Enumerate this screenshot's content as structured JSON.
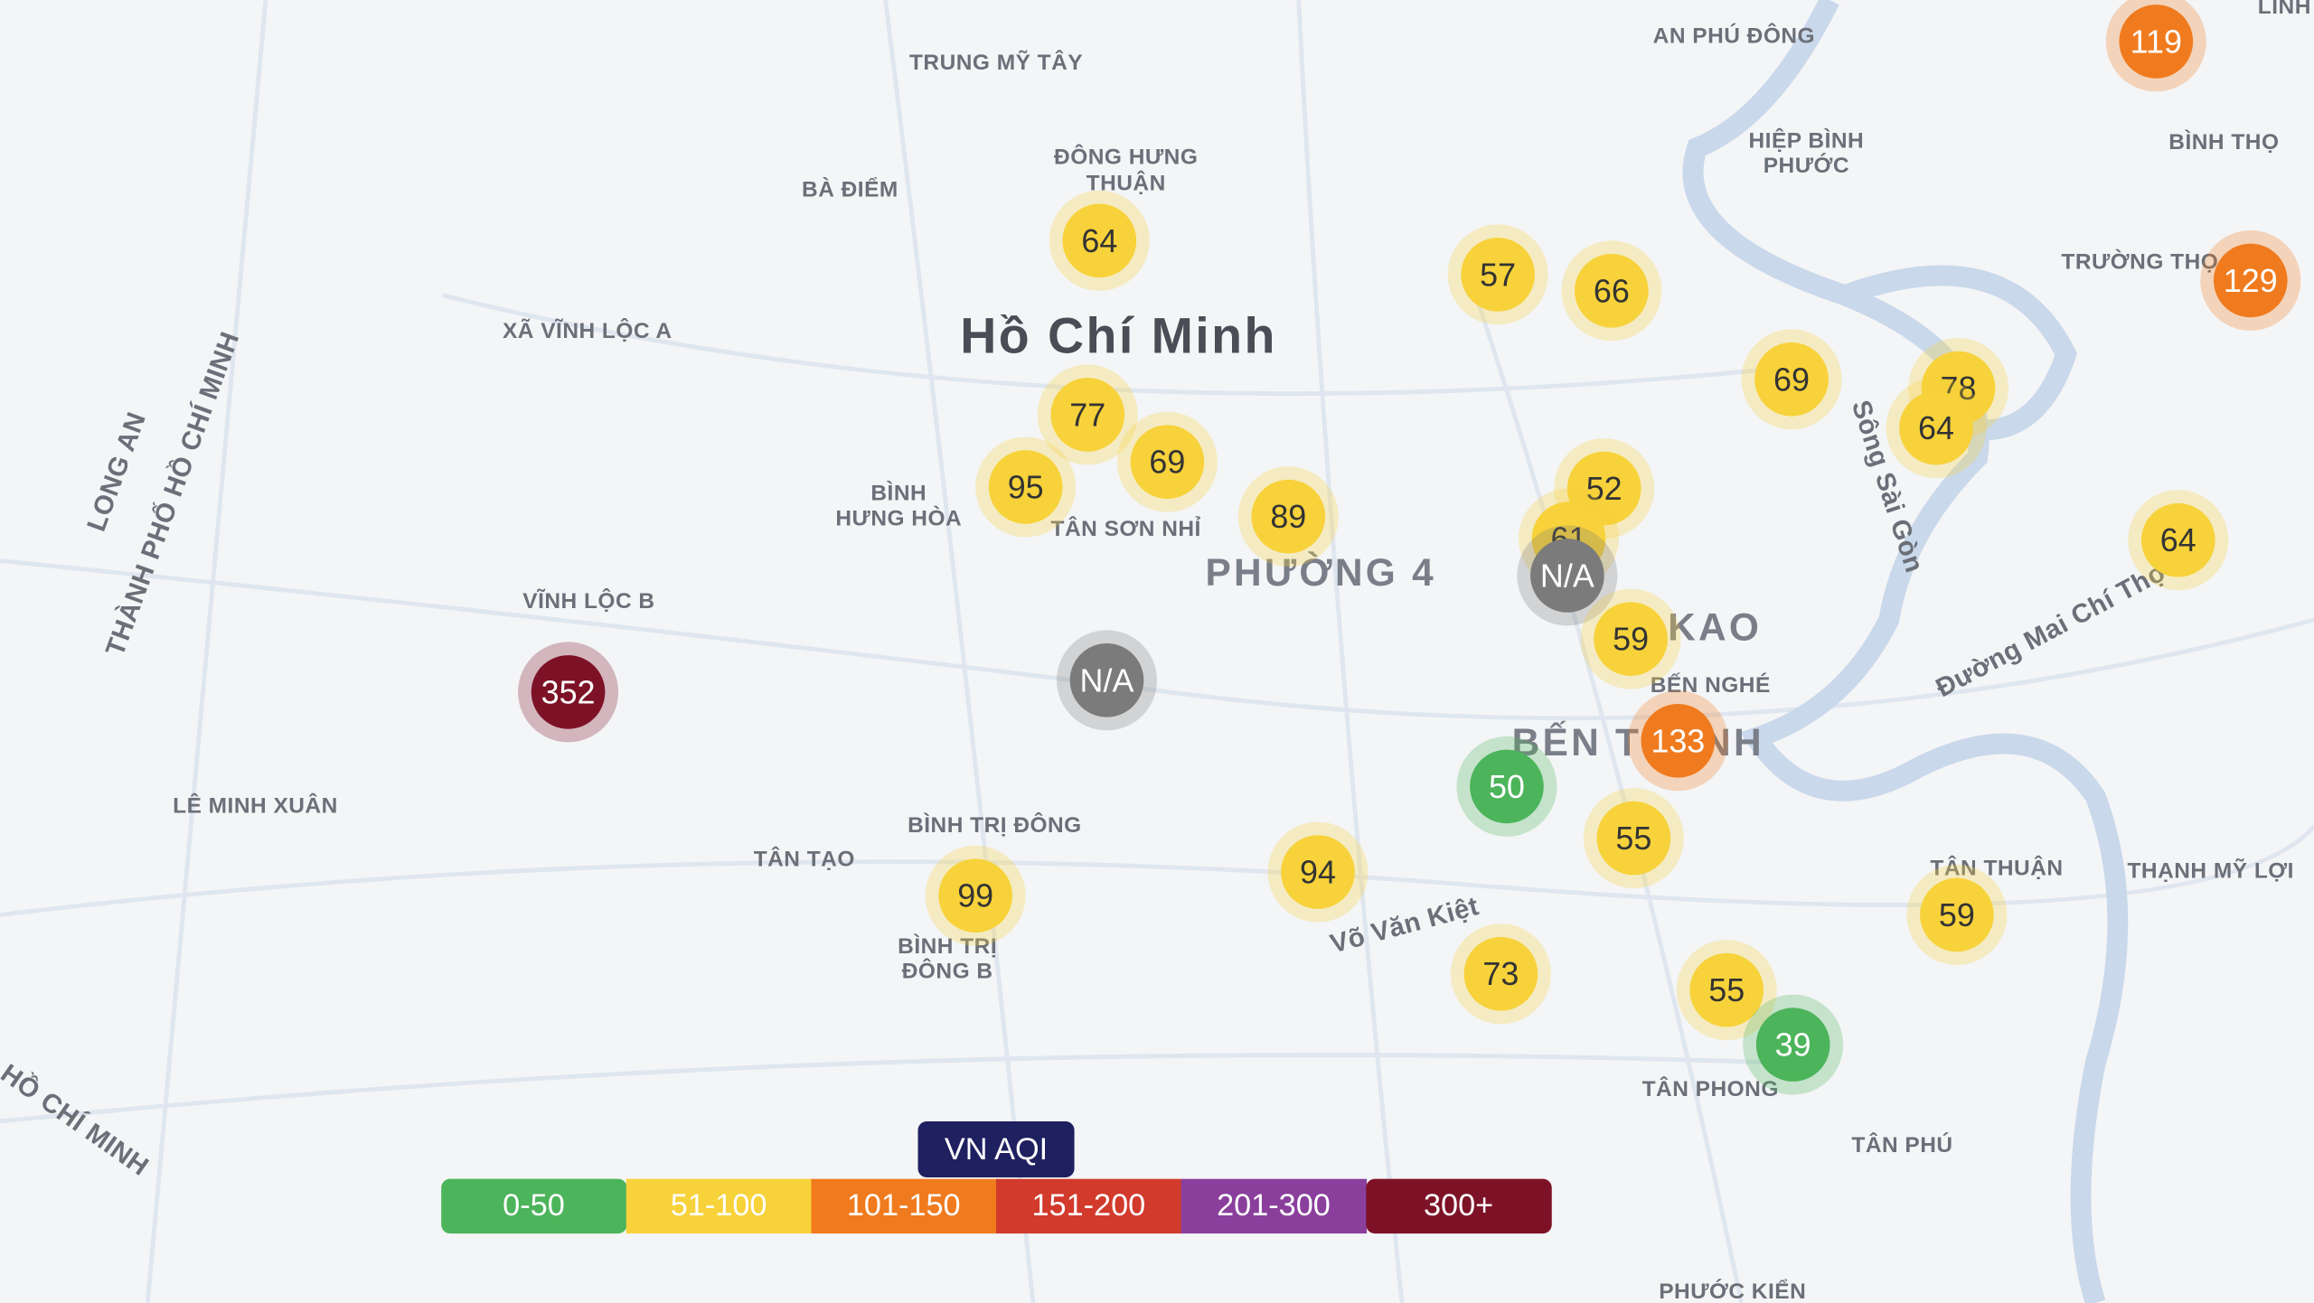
{
  "map": {
    "places": [
      "AN PHÚ ĐÔNG",
      "TRUNG MỸ TÂY",
      "BÀ ĐIỂM",
      "ĐÔNG HƯNG",
      "THUẬN",
      "HIỆP BÌNH",
      "PHƯỚC",
      "BÌNH THỌ",
      "XÃ VĨNH LỘC A",
      "Hồ Chí Minh",
      "TRƯỜNG THỌ",
      "BÌNH",
      "HƯNG HÒA",
      "TÂN SƠN NHỈ",
      "PHƯỜNG 4",
      "VĨNH LỘC B",
      "KAO",
      "BẾN NGHÉ",
      "BẾN THÀNH",
      "LÊ MINH XUÂN",
      "BÌNH TRỊ ĐÔNG",
      "TÂN TẠO",
      "BÌNH TRỊ",
      "ĐÔNG B",
      "TÂN THUẬN",
      "THẠNH MỸ LỢI",
      "TÂN PHONG",
      "TÂN PHÚ",
      "PHƯỚC KIỂN",
      "LINH"
    ],
    "roads": [
      "LONG AN",
      "THÀNH PHỐ HỒ CHÍ MINH",
      "Sông Sài Gòn",
      "Võ Văn Kiệt",
      "Đường Mai Chí Thọ",
      "HỒ CHÍ MINH"
    ],
    "stations": [
      {
        "value": 119,
        "color": "#f07b1e"
      },
      {
        "value": 64,
        "color": "#f7d23a"
      },
      {
        "value": 57,
        "color": "#f7d23a"
      },
      {
        "value": 66,
        "color": "#f7d23a"
      },
      {
        "value": 77,
        "color": "#f7d23a"
      },
      {
        "value": 69,
        "color": "#f7d23a"
      },
      {
        "value": 95,
        "color": "#f7d23a"
      },
      {
        "value": 89,
        "color": "#f7d23a"
      },
      {
        "value": 69,
        "color": "#f7d23a"
      },
      {
        "value": 78,
        "color": "#f7d23a"
      },
      {
        "value": 64,
        "color": "#f7d23a"
      },
      {
        "value": 129,
        "color": "#f07b1e"
      },
      {
        "value": 52,
        "color": "#f7d23a"
      },
      {
        "value": 61,
        "color": "#f7d23a"
      },
      {
        "value": "N/A",
        "color": "#7b7b7b"
      },
      {
        "value": "N/A",
        "color": "#7b7b7b"
      },
      {
        "value": 352,
        "color": "#7d1227"
      },
      {
        "value": 59,
        "color": "#f7d23a"
      },
      {
        "value": 133,
        "color": "#f07b1e"
      },
      {
        "value": 50,
        "color": "#4cb45a"
      },
      {
        "value": 55,
        "color": "#f7d23a"
      },
      {
        "value": 94,
        "color": "#f7d23a"
      },
      {
        "value": 99,
        "color": "#f7d23a"
      },
      {
        "value": 73,
        "color": "#f7d23a"
      },
      {
        "value": 55,
        "color": "#f7d23a"
      },
      {
        "value": 39,
        "color": "#4cb45a"
      },
      {
        "value": 59,
        "color": "#f7d23a"
      },
      {
        "value": 64,
        "color": "#f7d23a"
      }
    ],
    "legend": {
      "title": "VN AQI",
      "bands": [
        {
          "label": "0-50",
          "color": "#4cb45a"
        },
        {
          "label": "51-100",
          "color": "#f7d23a"
        },
        {
          "label": "101-150",
          "color": "#f07b1e"
        },
        {
          "label": "151-200",
          "color": "#d23a2c"
        },
        {
          "label": "201-300",
          "color": "#8a3f9c"
        },
        {
          "label": "300+",
          "color": "#7d1227"
        }
      ]
    }
  }
}
